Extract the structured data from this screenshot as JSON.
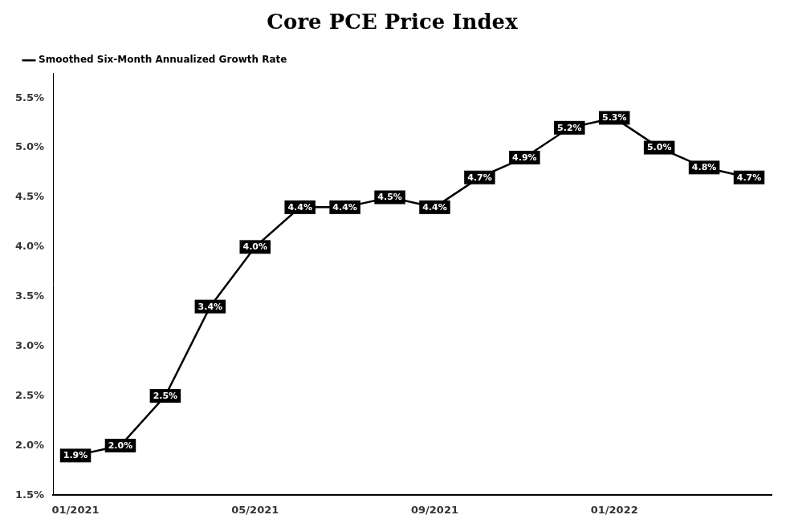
{
  "chart_data": {
    "type": "line",
    "title": "Core PCE Price Index",
    "categories": [
      "01/2021",
      null,
      null,
      null,
      "05/2021",
      null,
      null,
      null,
      "09/2021",
      null,
      null,
      null,
      "01/2022",
      null,
      null,
      null
    ],
    "series": [
      {
        "name": "Smoothed Six-Month Annualized Growth Rate",
        "color": "#000000",
        "values": [
          1.9,
          2.0,
          2.5,
          3.4,
          4.0,
          4.4,
          4.4,
          4.5,
          4.4,
          4.7,
          4.9,
          5.2,
          5.3,
          5.0,
          4.8,
          4.7
        ],
        "value_labels": [
          "1.9%",
          "2.0%",
          "2.5%",
          "3.4%",
          "4.0%",
          "4.4%",
          "4.4%",
          "4.5%",
          "4.4%",
          "4.7%",
          "4.9%",
          "5.2%",
          "5.3%",
          "5.0%",
          "4.8%",
          "4.7%"
        ]
      }
    ],
    "ylim": [
      1.5,
      5.75
    ],
    "yticks": [
      {
        "value": 1.5,
        "label": "1.5%"
      },
      {
        "value": 2.0,
        "label": "2.0%"
      },
      {
        "value": 2.5,
        "label": "2.5%"
      },
      {
        "value": 3.0,
        "label": "3.0%"
      },
      {
        "value": 3.5,
        "label": "3.5%"
      },
      {
        "value": 4.0,
        "label": "4.0%"
      },
      {
        "value": 4.5,
        "label": "4.5%"
      },
      {
        "value": 5.0,
        "label": "5.0%"
      },
      {
        "value": 5.5,
        "label": "5.5%"
      }
    ],
    "grid": false,
    "legend": "upper left",
    "data_labels": true
  }
}
